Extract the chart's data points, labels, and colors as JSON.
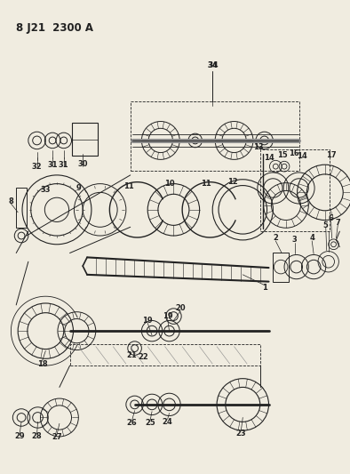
{
  "title": "8 J21  2300 A",
  "bg": "#f0ece0",
  "lc": "#222222",
  "figsize": [
    3.94,
    5.33
  ],
  "dpi": 100
}
